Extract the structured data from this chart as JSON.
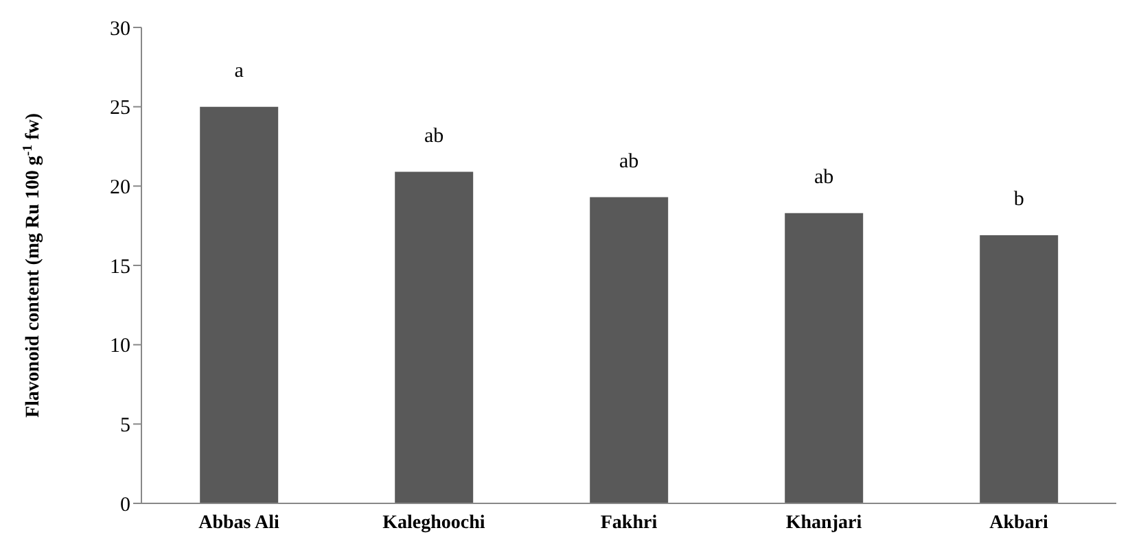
{
  "chart_data": {
    "type": "bar",
    "ylabel": "Flavonoid content (mg Ru 100 g$^{-1}$ fw)",
    "categories": [
      "Abbas Ali",
      "Kaleghoochi",
      "Fakhri",
      "Khanjari",
      "Akbari"
    ],
    "values": [
      25.0,
      20.9,
      19.3,
      18.3,
      16.9
    ],
    "color": "#595959",
    "ylim": [
      0,
      30
    ],
    "yticks": [
      0,
      5,
      10,
      15,
      20,
      25,
      30
    ],
    "grid": false,
    "legend": false,
    "value_labels": [
      "a",
      "ab",
      "ab",
      "ab",
      "b"
    ]
  }
}
